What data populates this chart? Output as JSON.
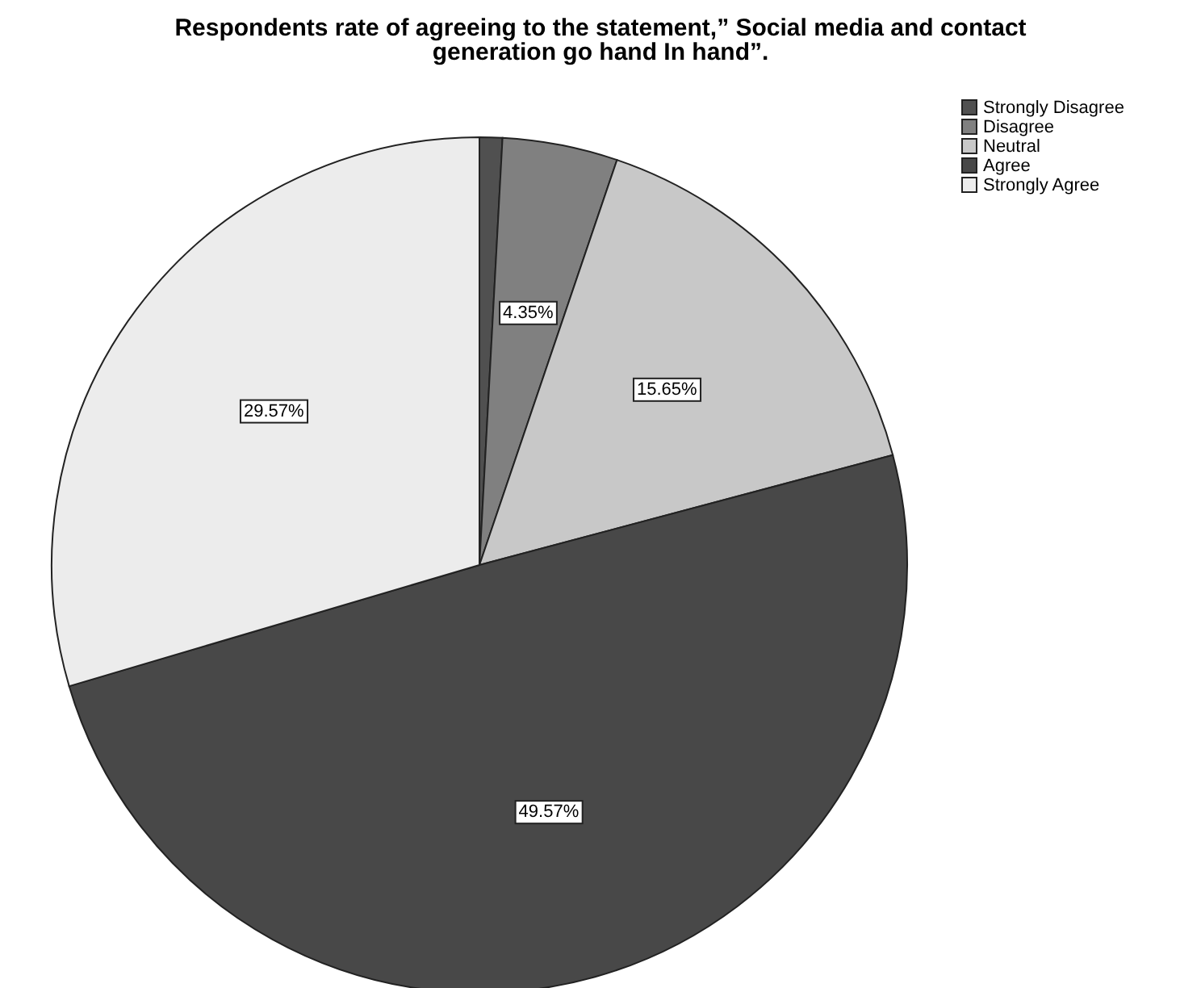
{
  "chart_data": {
    "type": "pie",
    "title": "Respondents rate of agreeing to the statement,” Social media and contact generation go hand In hand”.",
    "categories": [
      "Strongly Disagree",
      "Disagree",
      "Neutral",
      "Agree",
      "Strongly Agree"
    ],
    "values": [
      0.86,
      4.35,
      15.65,
      49.57,
      29.57
    ],
    "colors": [
      "#505050",
      "#808080",
      "#c8c8c8",
      "#484848",
      "#ececec"
    ],
    "value_labels": [
      null,
      "4.35%",
      "15.65%",
      "49.57%",
      "29.57%"
    ],
    "legend": "top right"
  }
}
